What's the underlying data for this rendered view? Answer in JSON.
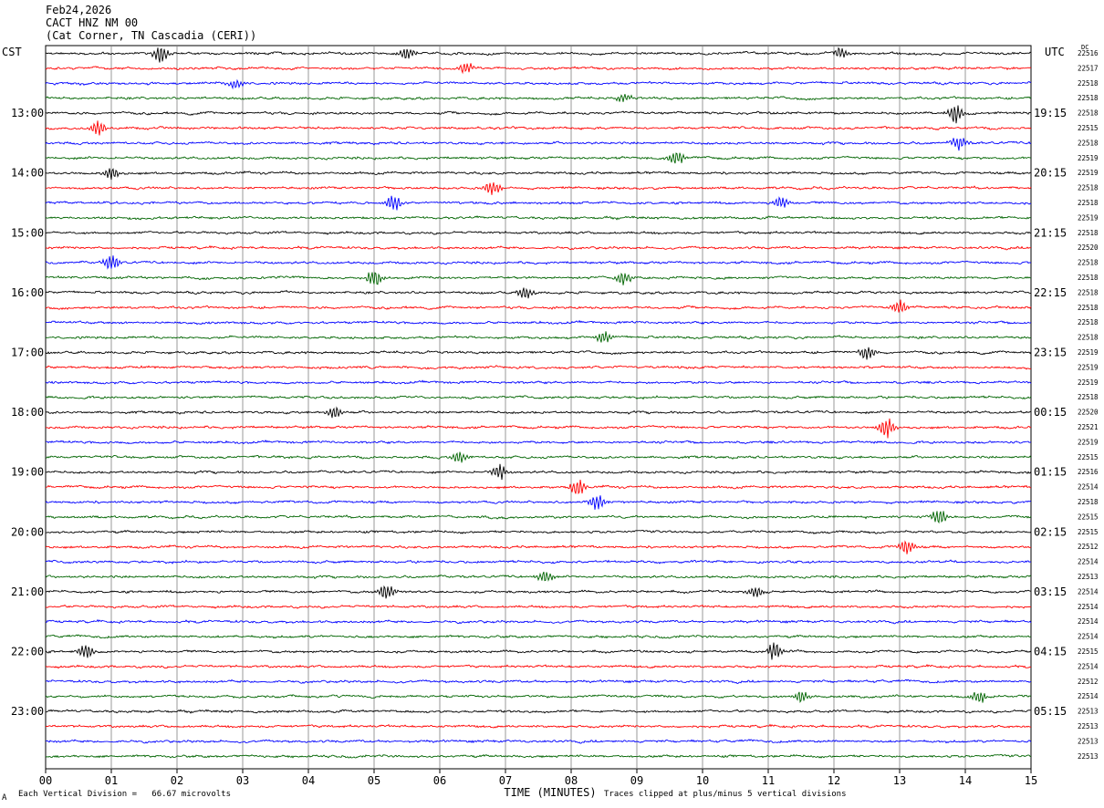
{
  "header": {
    "date": "Feb24,2026",
    "station": "CACT HNZ NM 00",
    "location": "(Cat Corner, TN Cascadia (CERI))"
  },
  "left_tz": "CST",
  "right_tz": "UTC",
  "dc_label": "DC",
  "footer": {
    "scale_text": "Each Vertical Division =   66.67 microvolts",
    "clip_text": "Traces clipped at plus/minus 5 vertical divisions",
    "mark": "A"
  },
  "colors": {
    "cycle": [
      "#000000",
      "#ff0000",
      "#0000ff",
      "#006400"
    ],
    "grid": "#808080"
  },
  "chart_data": {
    "type": "line",
    "title": "",
    "xlabel": "TIME (MINUTES)",
    "xlim": [
      0,
      15
    ],
    "x_ticks": [
      "00",
      "01",
      "02",
      "03",
      "04",
      "05",
      "06",
      "07",
      "08",
      "09",
      "10",
      "11",
      "12",
      "13",
      "14",
      "15"
    ],
    "left_hour_labels": [
      "13:00",
      "14:00",
      "15:00",
      "16:00",
      "17:00",
      "18:00",
      "19:00",
      "20:00",
      "21:00",
      "22:00",
      "23:00"
    ],
    "right_hour_labels": [
      "19:15",
      "20:15",
      "21:15",
      "22:15",
      "23:15",
      "00:15",
      "01:15",
      "02:15",
      "03:15",
      "04:15",
      "05:15"
    ],
    "dc_offsets": [
      22516,
      22517,
      22518,
      22518,
      22518,
      22515,
      22518,
      22519,
      22519,
      22518,
      22518,
      22519,
      22518,
      22520,
      22518,
      22518,
      22518,
      22518,
      22518,
      22518,
      22519,
      22519,
      22519,
      22518,
      22520,
      22521,
      22519,
      22515,
      22516,
      22514,
      22518,
      22515,
      22515,
      22512,
      22514,
      22513,
      22514,
      22514,
      22514,
      22514,
      22515,
      22514,
      22512,
      22514,
      22513,
      22513,
      22513,
      22513
    ],
    "events": [
      {
        "trace": 0,
        "minute": 1.75,
        "amp": 9
      },
      {
        "trace": 0,
        "minute": 5.5,
        "amp": 7
      },
      {
        "trace": 0,
        "minute": 12.1,
        "amp": 6
      },
      {
        "trace": 1,
        "minute": 6.4,
        "amp": 6
      },
      {
        "trace": 2,
        "minute": 2.9,
        "amp": 5
      },
      {
        "trace": 3,
        "minute": 8.8,
        "amp": 5
      },
      {
        "trace": 4,
        "minute": 13.85,
        "amp": 10
      },
      {
        "trace": 5,
        "minute": 0.8,
        "amp": 8
      },
      {
        "trace": 6,
        "minute": 13.9,
        "amp": 8
      },
      {
        "trace": 7,
        "minute": 9.6,
        "amp": 8
      },
      {
        "trace": 8,
        "minute": 1.0,
        "amp": 7
      },
      {
        "trace": 9,
        "minute": 6.8,
        "amp": 8
      },
      {
        "trace": 10,
        "minute": 5.3,
        "amp": 9
      },
      {
        "trace": 10,
        "minute": 11.2,
        "amp": 6
      },
      {
        "trace": 14,
        "minute": 1.0,
        "amp": 10
      },
      {
        "trace": 15,
        "minute": 5.0,
        "amp": 10
      },
      {
        "trace": 15,
        "minute": 8.8,
        "amp": 8
      },
      {
        "trace": 16,
        "minute": 7.3,
        "amp": 7
      },
      {
        "trace": 17,
        "minute": 13.0,
        "amp": 7
      },
      {
        "trace": 19,
        "minute": 8.5,
        "amp": 7
      },
      {
        "trace": 20,
        "minute": 12.5,
        "amp": 8
      },
      {
        "trace": 24,
        "minute": 4.4,
        "amp": 7
      },
      {
        "trace": 25,
        "minute": 12.8,
        "amp": 12
      },
      {
        "trace": 27,
        "minute": 6.3,
        "amp": 7
      },
      {
        "trace": 28,
        "minute": 6.9,
        "amp": 8
      },
      {
        "trace": 29,
        "minute": 8.1,
        "amp": 9
      },
      {
        "trace": 30,
        "minute": 8.4,
        "amp": 9
      },
      {
        "trace": 31,
        "minute": 13.6,
        "amp": 9
      },
      {
        "trace": 33,
        "minute": 13.1,
        "amp": 8
      },
      {
        "trace": 35,
        "minute": 7.6,
        "amp": 7
      },
      {
        "trace": 36,
        "minute": 5.2,
        "amp": 9
      },
      {
        "trace": 36,
        "minute": 10.8,
        "amp": 6
      },
      {
        "trace": 40,
        "minute": 0.6,
        "amp": 8
      },
      {
        "trace": 40,
        "minute": 11.1,
        "amp": 9
      },
      {
        "trace": 43,
        "minute": 11.5,
        "amp": 6
      },
      {
        "trace": 43,
        "minute": 14.2,
        "amp": 7
      }
    ]
  }
}
